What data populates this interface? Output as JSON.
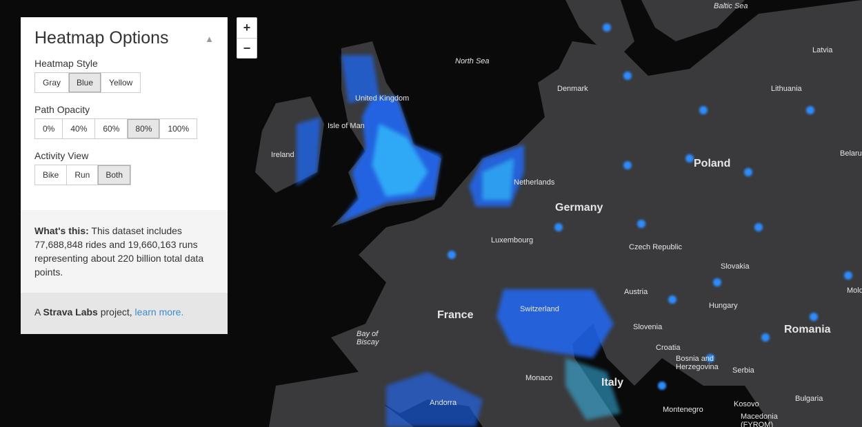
{
  "map": {
    "labels": [
      {
        "text": "Baltic Sea",
        "kind": "sea"
      },
      {
        "text": "North Sea",
        "kind": "sea"
      },
      {
        "text": "Latvia",
        "kind": "country"
      },
      {
        "text": "Lithuania",
        "kind": "country"
      },
      {
        "text": "Denmark",
        "kind": "country"
      },
      {
        "text": "United Kingdom",
        "kind": "country"
      },
      {
        "text": "Isle of Man",
        "kind": "country"
      },
      {
        "text": "Ireland",
        "kind": "country"
      },
      {
        "text": "Netherlands",
        "kind": "country"
      },
      {
        "text": "Poland",
        "kind": "big"
      },
      {
        "text": "Belarus",
        "kind": "country"
      },
      {
        "text": "Germany",
        "kind": "big"
      },
      {
        "text": "Luxembourg",
        "kind": "country"
      },
      {
        "text": "Czech Republic",
        "kind": "country"
      },
      {
        "text": "Slovakia",
        "kind": "country"
      },
      {
        "text": "Austria",
        "kind": "country"
      },
      {
        "text": "Hungary",
        "kind": "country"
      },
      {
        "text": "Switzerland",
        "kind": "country"
      },
      {
        "text": "Slovenia",
        "kind": "country"
      },
      {
        "text": "Croatia",
        "kind": "country"
      },
      {
        "text": "France",
        "kind": "big"
      },
      {
        "text": "Bay of\nBiscay",
        "kind": "sea"
      },
      {
        "text": "Bosnia and\nHerzegovina",
        "kind": "country"
      },
      {
        "text": "Serbia",
        "kind": "country"
      },
      {
        "text": "Romania",
        "kind": "big"
      },
      {
        "text": "Moldova",
        "kind": "country"
      },
      {
        "text": "Montenegro",
        "kind": "country"
      },
      {
        "text": "Kosovo",
        "kind": "country"
      },
      {
        "text": "Macedonia\n(FYROM)",
        "kind": "country"
      },
      {
        "text": "Bulgaria",
        "kind": "country"
      },
      {
        "text": "Italy",
        "kind": "big"
      },
      {
        "text": "Monaco",
        "kind": "country"
      },
      {
        "text": "Andorra",
        "kind": "country"
      }
    ],
    "heat_color": "#1e6bff",
    "heat_hot_color": "#35c8ff",
    "land_color": "#3a3a3c",
    "water_color": "#0a0a0a"
  },
  "zoom": {
    "in": "+",
    "out": "−"
  },
  "panel": {
    "title": "Heatmap Options",
    "collapse_icon": "▲",
    "groups": [
      {
        "label": "Heatmap Style",
        "options": [
          "Gray",
          "Blue",
          "Yellow"
        ],
        "selected": "Blue"
      },
      {
        "label": "Path Opacity",
        "options": [
          "0%",
          "40%",
          "60%",
          "80%",
          "100%"
        ],
        "selected": "80%"
      },
      {
        "label": "Activity View",
        "options": [
          "Bike",
          "Run",
          "Both"
        ],
        "selected": "Both"
      }
    ],
    "info_bold": "What's this:",
    "info_text": " This dataset includes 77,688,848 rides and 19,660,163 runs representing about 220 billion total data points.",
    "footer_prefix": "A ",
    "footer_bold": "Strava Labs",
    "footer_mid": " project, ",
    "footer_link": "learn more."
  }
}
